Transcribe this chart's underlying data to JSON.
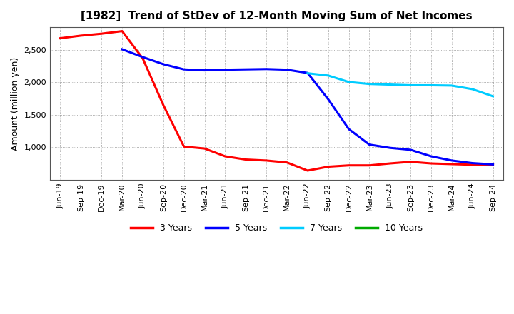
{
  "title": "[1982]  Trend of StDev of 12-Month Moving Sum of Net Incomes",
  "ylabel": "Amount (million yen)",
  "background_color": "#ffffff",
  "plot_background_color": "#ffffff",
  "grid_color": "#999999",
  "x_labels": [
    "Jun-19",
    "Sep-19",
    "Dec-19",
    "Mar-20",
    "Jun-20",
    "Sep-20",
    "Dec-20",
    "Mar-21",
    "Jun-21",
    "Sep-21",
    "Dec-21",
    "Mar-22",
    "Jun-22",
    "Sep-22",
    "Dec-22",
    "Mar-23",
    "Jun-23",
    "Sep-23",
    "Dec-23",
    "Mar-24",
    "Jun-24",
    "Sep-24"
  ],
  "series": {
    "3 Years": {
      "color": "#ff0000",
      "values": [
        2680,
        2720,
        2750,
        2790,
        2370,
        1650,
        1010,
        980,
        860,
        810,
        795,
        765,
        640,
        700,
        720,
        720,
        750,
        775,
        750,
        740,
        730,
        730
      ]
    },
    "5 Years": {
      "color": "#0000ff",
      "values": [
        null,
        null,
        null,
        2510,
        2390,
        2280,
        2200,
        2185,
        2195,
        2200,
        2205,
        2195,
        2145,
        1740,
        1280,
        1040,
        990,
        960,
        860,
        795,
        755,
        735
      ]
    },
    "7 Years": {
      "color": "#00ccff",
      "values": [
        null,
        null,
        null,
        null,
        null,
        null,
        null,
        null,
        null,
        null,
        null,
        null,
        2140,
        2105,
        2005,
        1975,
        1965,
        1955,
        1955,
        1950,
        1895,
        1785
      ]
    },
    "10 Years": {
      "color": "#00aa00",
      "values": [
        null,
        null,
        null,
        null,
        null,
        null,
        null,
        null,
        null,
        null,
        null,
        null,
        null,
        null,
        null,
        null,
        null,
        null,
        null,
        null,
        null,
        null
      ]
    }
  },
  "ylim": [
    500,
    2850
  ],
  "yticks": [
    1000,
    1500,
    2000,
    2500
  ],
  "legend_entries": [
    "3 Years",
    "5 Years",
    "7 Years",
    "10 Years"
  ],
  "legend_colors": [
    "#ff0000",
    "#0000ff",
    "#00ccff",
    "#00aa00"
  ]
}
